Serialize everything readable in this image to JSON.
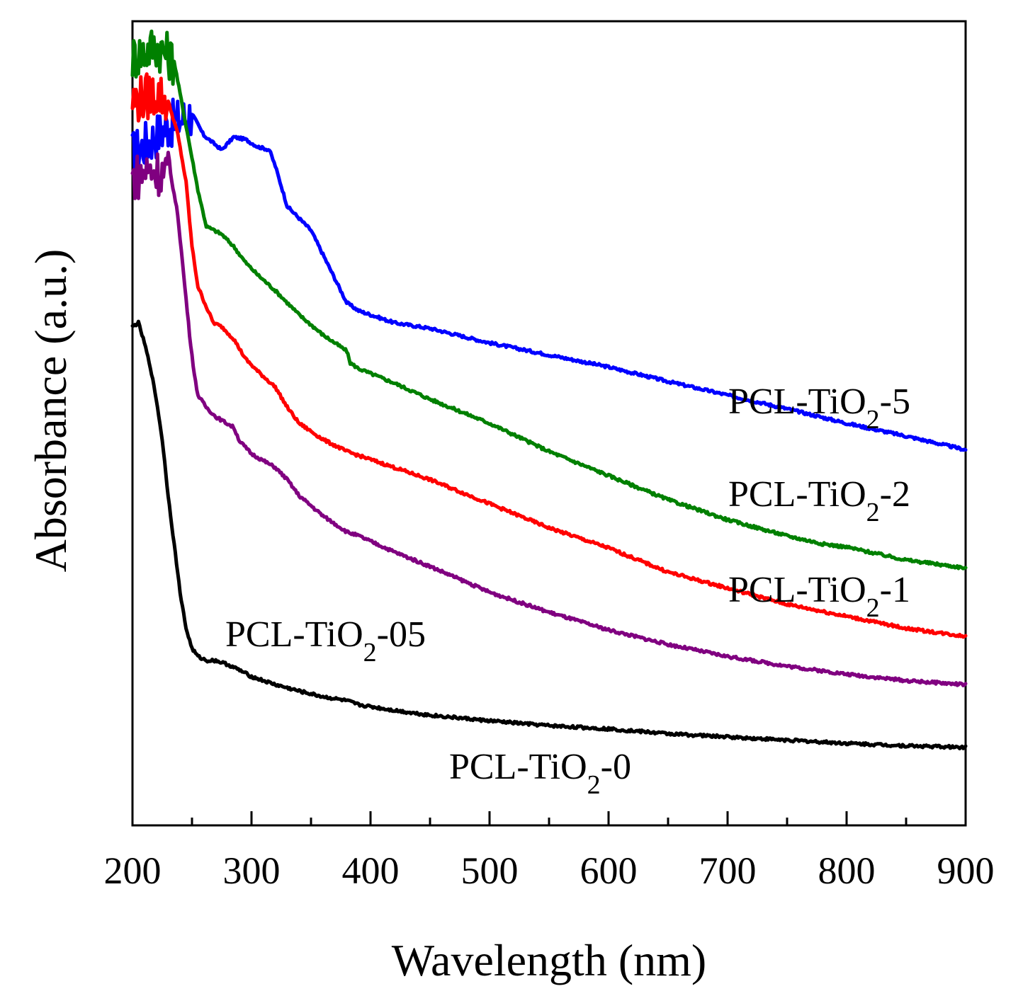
{
  "chart_data": {
    "type": "line",
    "title": "",
    "xlabel": "Wavelength (nm)",
    "ylabel": "Absorbance (a.u.)",
    "xlim": [
      200,
      900
    ],
    "ylim": [
      0,
      1
    ],
    "x_ticks": [
      200,
      300,
      400,
      500,
      600,
      700,
      800,
      900
    ],
    "x_tick_labels": [
      "200",
      "300",
      "400",
      "500",
      "600",
      "700",
      "800",
      "900"
    ],
    "grid": false,
    "legend": "inline labels",
    "series": [
      {
        "name": "PCL-TiO2-5",
        "label_prefix": "PCL-TiO",
        "label_sub": "2",
        "label_suffix": "-5",
        "color": "#0000ff",
        "noise_until": 250,
        "x": [
          200,
          230,
          250,
          260,
          275,
          285,
          295,
          305,
          315,
          320,
          330,
          340,
          350,
          360,
          370,
          380,
          390,
          420,
          450,
          500,
          550,
          600,
          650,
          700,
          750,
          800,
          850,
          900
        ],
        "y": [
          0.835,
          0.87,
          0.885,
          0.858,
          0.84,
          0.856,
          0.853,
          0.844,
          0.84,
          0.82,
          0.77,
          0.755,
          0.74,
          0.71,
          0.68,
          0.65,
          0.64,
          0.625,
          0.618,
          0.6,
          0.585,
          0.57,
          0.552,
          0.535,
          0.518,
          0.5,
          0.484,
          0.467
        ]
      },
      {
        "name": "PCL-TiO2-2",
        "label_prefix": "PCL-TiO",
        "label_sub": "2",
        "label_suffix": "-2",
        "color": "#008000",
        "noise_until": 235,
        "x": [
          200,
          220,
          235,
          245,
          255,
          262,
          275,
          285,
          295,
          305,
          320,
          340,
          360,
          380,
          383,
          386,
          390,
          420,
          450,
          500,
          550,
          600,
          650,
          700,
          750,
          780,
          800,
          850,
          900
        ],
        "y": [
          0.955,
          0.97,
          0.95,
          0.87,
          0.79,
          0.745,
          0.735,
          0.72,
          0.7,
          0.685,
          0.665,
          0.635,
          0.61,
          0.59,
          0.575,
          0.572,
          0.568,
          0.55,
          0.53,
          0.5,
          0.465,
          0.435,
          0.405,
          0.38,
          0.36,
          0.35,
          0.346,
          0.33,
          0.32
        ]
      },
      {
        "name": "PCL-TiO2-1",
        "label_prefix": "PCL-TiO",
        "label_sub": "2",
        "label_suffix": "-1",
        "color": "#ff0000",
        "noise_until": 230,
        "x": [
          200,
          220,
          230,
          238,
          245,
          250,
          255,
          262,
          268,
          275,
          285,
          295,
          305,
          320,
          330,
          340,
          350,
          360,
          380,
          390,
          420,
          450,
          500,
          550,
          600,
          650,
          700,
          750,
          800,
          850,
          900
        ],
        "y": [
          0.9,
          0.91,
          0.9,
          0.86,
          0.8,
          0.72,
          0.67,
          0.645,
          0.625,
          0.62,
          0.605,
          0.58,
          0.565,
          0.545,
          0.52,
          0.5,
          0.49,
          0.48,
          0.465,
          0.46,
          0.445,
          0.43,
          0.4,
          0.37,
          0.345,
          0.315,
          0.295,
          0.275,
          0.26,
          0.245,
          0.235
        ]
      },
      {
        "name": "PCL-TiO2-05",
        "label_prefix": "PCL-TiO",
        "label_sub": "2",
        "label_suffix": "-05",
        "color": "#800080",
        "noise_until": 232,
        "x": [
          200,
          215,
          232,
          238,
          242,
          248,
          252,
          255,
          262,
          270,
          285,
          290,
          300,
          320,
          330,
          340,
          360,
          380,
          390,
          420,
          450,
          500,
          550,
          600,
          650,
          700,
          750,
          800,
          850,
          900
        ],
        "y": [
          0.805,
          0.815,
          0.81,
          0.76,
          0.7,
          0.61,
          0.56,
          0.535,
          0.52,
          0.508,
          0.495,
          0.478,
          0.462,
          0.445,
          0.43,
          0.41,
          0.385,
          0.365,
          0.36,
          0.34,
          0.322,
          0.29,
          0.265,
          0.243,
          0.225,
          0.21,
          0.198,
          0.188,
          0.18,
          0.175
        ]
      },
      {
        "name": "PCL-TiO2-0",
        "label_prefix": "PCL-TiO",
        "label_sub": "2",
        "label_suffix": "-0",
        "color": "#000000",
        "noise_until": 0,
        "x": [
          200,
          205,
          210,
          215,
          220,
          225,
          230,
          235,
          240,
          245,
          250,
          255,
          262,
          270,
          280,
          290,
          300,
          320,
          340,
          360,
          380,
          390,
          420,
          450,
          500,
          550,
          600,
          650,
          700,
          750,
          800,
          850,
          900
        ],
        "y": [
          0.62,
          0.625,
          0.6,
          0.57,
          0.53,
          0.48,
          0.41,
          0.35,
          0.29,
          0.245,
          0.22,
          0.21,
          0.205,
          0.205,
          0.2,
          0.193,
          0.185,
          0.175,
          0.167,
          0.16,
          0.155,
          0.15,
          0.143,
          0.137,
          0.13,
          0.124,
          0.12,
          0.114,
          0.11,
          0.106,
          0.102,
          0.099,
          0.097
        ]
      }
    ]
  }
}
